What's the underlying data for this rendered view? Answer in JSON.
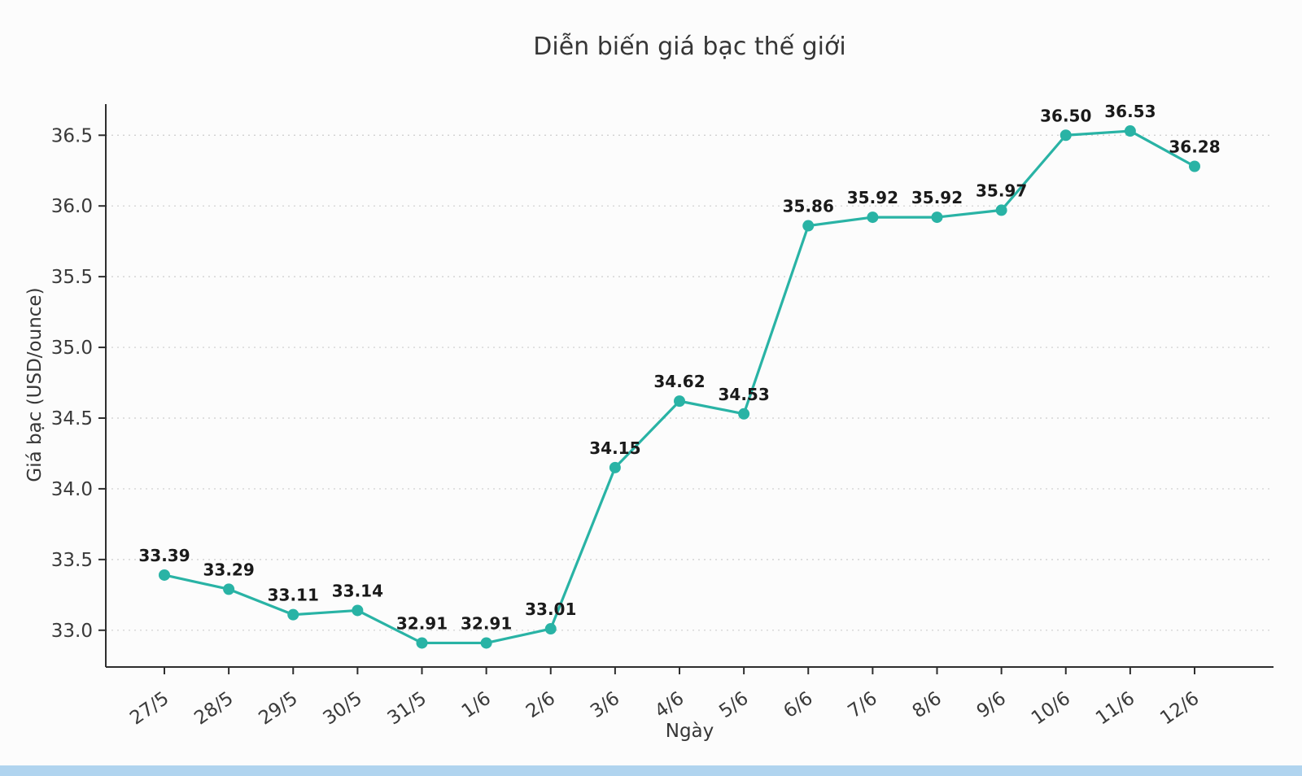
{
  "page": {
    "background": "#fcfcfc",
    "bottom_strip_color": "#b0d4ef"
  },
  "chart_data": {
    "type": "line",
    "title": "Diễn biến giá bạc thế giới",
    "xlabel": "Ngày",
    "ylabel": "Giá bạc (USD/ounce)",
    "categories": [
      "27/5",
      "28/5",
      "29/5",
      "30/5",
      "31/5",
      "1/6",
      "2/6",
      "3/6",
      "4/6",
      "5/6",
      "6/6",
      "7/6",
      "8/6",
      "9/6",
      "10/6",
      "11/6",
      "12/6"
    ],
    "values": [
      33.39,
      33.29,
      33.11,
      33.14,
      32.91,
      32.91,
      33.01,
      34.15,
      34.62,
      34.53,
      35.86,
      35.92,
      35.92,
      35.97,
      36.5,
      36.53,
      36.28
    ],
    "point_labels": [
      "33.39",
      "33.29",
      "33.11",
      "33.14",
      "32.91",
      "32.91",
      "33.01",
      "34.15",
      "34.62",
      "34.53",
      "35.86",
      "35.92",
      "35.92",
      "35.97",
      "36.50",
      "36.53",
      "36.28"
    ],
    "y_ticks": [
      33.0,
      33.5,
      34.0,
      34.5,
      35.0,
      35.5,
      36.0,
      36.5
    ],
    "ylim": [
      32.74,
      36.72
    ],
    "grid": true,
    "grid_style": "dashed",
    "grid_color": "#cdcdcd",
    "line_color": "#29b3a5",
    "marker_color": "#29b3a5",
    "marker": "circle",
    "legend": "none",
    "axis_color": "#2e2e2e",
    "tick_label_color": "#3a3a3a",
    "point_label_color": "#1a1a1a"
  }
}
